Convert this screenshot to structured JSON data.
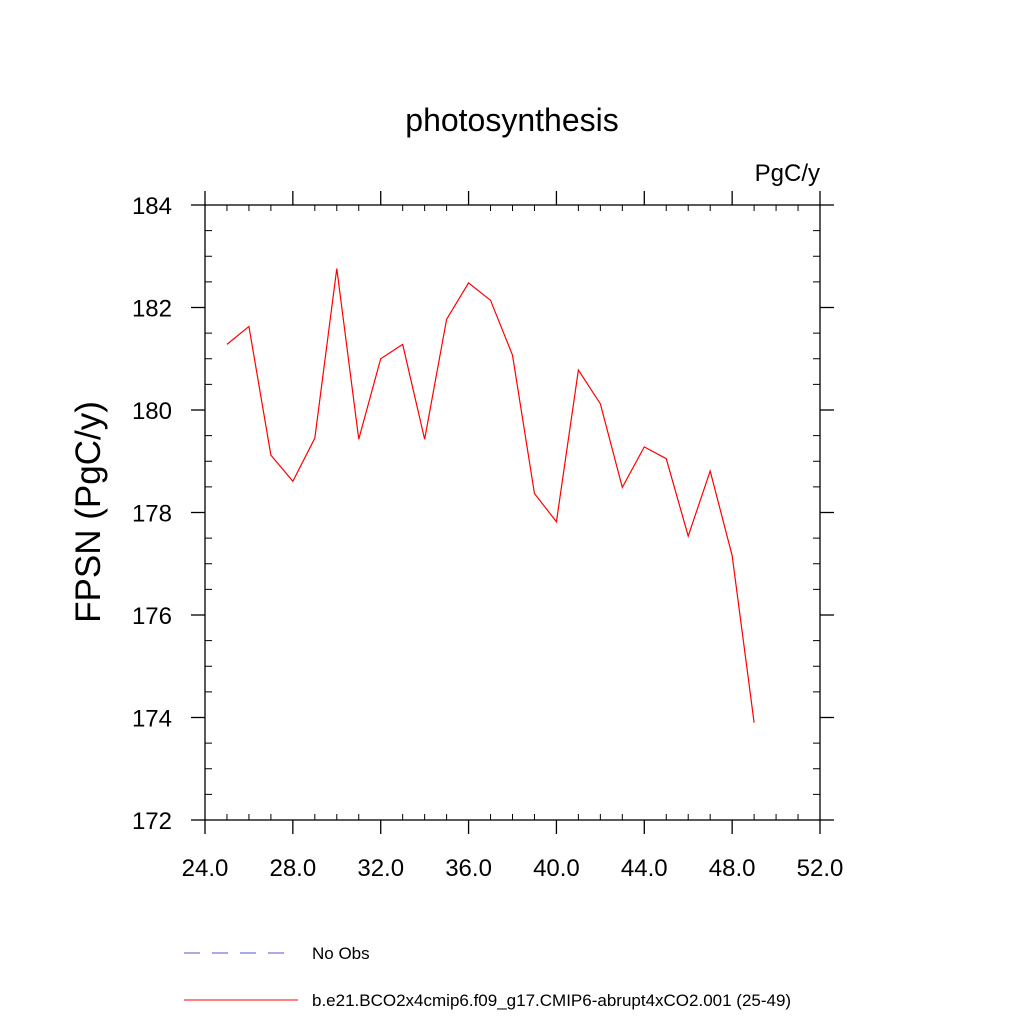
{
  "chart_data": {
    "type": "line",
    "title": "photosynthesis",
    "units": "PgC/y",
    "xlabel": "",
    "ylabel": "FPSN  (PgC/y)",
    "xlim": [
      24,
      52
    ],
    "ylim": [
      172,
      184
    ],
    "x_ticks": [
      "24.0",
      "28.0",
      "32.0",
      "36.0",
      "40.0",
      "44.0",
      "48.0",
      "52.0"
    ],
    "y_ticks": [
      "172",
      "174",
      "176",
      "178",
      "180",
      "182",
      "184"
    ],
    "grid": false,
    "series": [
      {
        "name": "b.e21.BCO2x4cmip6.f09_g17.CMIP6-abrupt4xCO2.001 (25-49)",
        "color": "#ff0000",
        "style": "solid",
        "x": [
          25,
          26,
          27,
          28,
          29,
          30,
          31,
          32,
          33,
          34,
          35,
          36,
          37,
          38,
          39,
          40,
          41,
          42,
          43,
          44,
          45,
          46,
          47,
          48,
          49
        ],
        "y": [
          181.28,
          181.63,
          179.12,
          178.61,
          179.45,
          182.76,
          179.43,
          181.0,
          181.28,
          179.43,
          181.77,
          182.48,
          182.14,
          181.07,
          178.37,
          177.82,
          180.78,
          180.12,
          178.49,
          179.28,
          179.05,
          177.54,
          178.81,
          177.16,
          173.9
        ]
      }
    ],
    "legend": {
      "placement": "bottom",
      "entries": [
        {
          "label": "No Obs",
          "color": "#5555cc",
          "style": "dashed"
        },
        {
          "label": "b.e21.BCO2x4cmip6.f09_g17.CMIP6-abrupt4xCO2.001 (25-49)",
          "color": "#ff0000",
          "style": "solid"
        }
      ]
    }
  }
}
